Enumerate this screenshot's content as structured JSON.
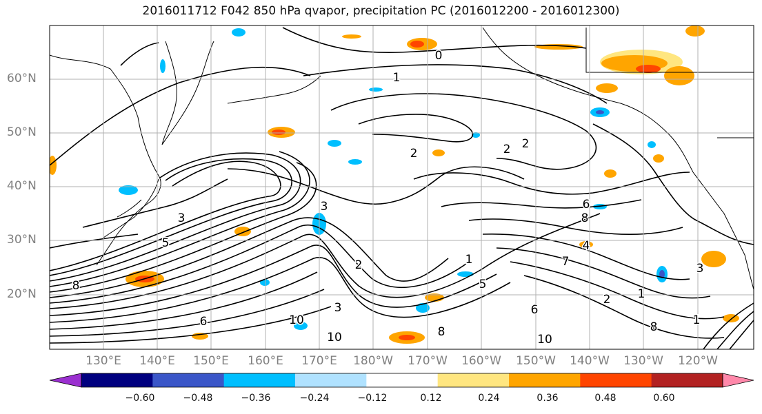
{
  "title": "2016011712 F042 850 hPa qvapor, precipitation PC (2016012200 - 2016012300)",
  "lat_labels": [
    "60°N",
    "50°N",
    "40°N",
    "30°N",
    "20°N"
  ],
  "lon_labels": [
    "130°E",
    "140°E",
    "150°E",
    "160°E",
    "170°E",
    "180°W",
    "170°W",
    "160°W",
    "150°W",
    "140°W",
    "130°W",
    "120°W"
  ],
  "colorbar": {
    "tick_labels": [
      "−0.60",
      "−0.48",
      "−0.36",
      "−0.24",
      "−0.12",
      "0.12",
      "0.24",
      "0.36",
      "0.48",
      "0.60"
    ],
    "colors": [
      "#9b30d0",
      "#00007f",
      "#3a56c8",
      "#00bfff",
      "#b0e2ff",
      "#ffffff",
      "#ffe680",
      "#ffa500",
      "#ff4500",
      "#b22222",
      "#ff88aa"
    ]
  },
  "contour_labels": [
    "0",
    "1",
    "2",
    "2",
    "2",
    "3",
    "5",
    "6",
    "8",
    "3",
    "2",
    "1",
    "3",
    "10",
    "10",
    "6",
    "8",
    "4",
    "5",
    "7",
    "3",
    "1",
    "8",
    "1",
    "8",
    "6",
    "10",
    "2"
  ],
  "colors": {
    "grid": "#b0b0b0",
    "coast": "#000000",
    "contour": "#000000"
  }
}
